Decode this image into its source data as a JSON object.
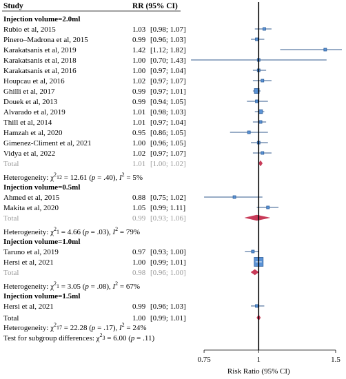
{
  "chart_data": {
    "type": "forest",
    "header": {
      "study": "Study",
      "effect": "RR (95% CI)"
    },
    "axis": {
      "label": "Risk Ratio (95% CI)",
      "ticks": [
        0.75,
        1,
        1.5
      ],
      "tick_labels": [
        "0.75",
        "1",
        "1.5"
      ],
      "scale": "log",
      "range": [
        0.67,
        1.55
      ],
      "reference": 1
    },
    "colors": {
      "box": "#5b93d6",
      "box_edge": "#2d5e9a",
      "line": "#5a7ba3",
      "diamond": "#c83a58",
      "total_text": "#9a9a9a"
    },
    "groups": [
      {
        "title": "Injection volume=2.0ml",
        "studies": [
          {
            "study": "Rubio et al, 2015",
            "ci_text": "1.03  [0.98;  1.07]",
            "rr": 1.03,
            "lo": 0.98,
            "hi": 1.07
          },
          {
            "study": "Pinero–Madrona et al, 2015",
            "ci_text": "0.99  [0.96;  1.03]",
            "rr": 0.99,
            "lo": 0.96,
            "hi": 1.03
          },
          {
            "study": "Karakatsanis et al, 2019",
            "ci_text": "1.42  [1.12;  1.82]",
            "rr": 1.42,
            "lo": 1.12,
            "hi": 1.82
          },
          {
            "study": "Karakatsanis et al, 2018",
            "ci_text": "1.00  [0.70;  1.43]",
            "rr": 1.0,
            "lo": 0.7,
            "hi": 1.43
          },
          {
            "study": "Karakatsanis et al, 2016",
            "ci_text": "1.00  [0.97;  1.04]",
            "rr": 1.0,
            "lo": 0.97,
            "hi": 1.04
          },
          {
            "study": "Houpcau et al, 2016",
            "ci_text": "1.02  [0.97;  1.07]",
            "rr": 1.02,
            "lo": 0.97,
            "hi": 1.07
          },
          {
            "study": "Ghilli et al, 2017",
            "ci_text": "0.99  [0.97;  1.01]",
            "rr": 0.99,
            "lo": 0.97,
            "hi": 1.01
          },
          {
            "study": "Douek et al, 2013",
            "ci_text": "0.99  [0.94;  1.05]",
            "rr": 0.99,
            "lo": 0.94,
            "hi": 1.05
          },
          {
            "study": "Alvarado et al, 2019",
            "ci_text": "1.01  [0.98;  1.03]",
            "rr": 1.01,
            "lo": 0.98,
            "hi": 1.03
          },
          {
            "study": "Thill et al, 2014",
            "ci_text": "1.01  [0.97;  1.04]",
            "rr": 1.01,
            "lo": 0.97,
            "hi": 1.04
          },
          {
            "study": "Hamzah et al, 2020",
            "ci_text": "0.95  [0.86;  1.05]",
            "rr": 0.95,
            "lo": 0.86,
            "hi": 1.05
          },
          {
            "study": "Gimenez-Climent et al, 2021",
            "ci_text": "1.00  [0.96;  1.05]",
            "rr": 1.0,
            "lo": 0.96,
            "hi": 1.05
          },
          {
            "study": "Vidya et al, 2022",
            "ci_text": "1.02  [0.97;  1.07]",
            "rr": 1.02,
            "lo": 0.97,
            "hi": 1.07
          }
        ],
        "total": {
          "label": "Total",
          "ci_text": "1.01  [1.00;  1.02]",
          "rr": 1.01,
          "lo": 1.0,
          "hi": 1.02
        },
        "heterogeneity": {
          "chi2": "12.61",
          "df": "12",
          "p": ".40",
          "i2": "5%"
        }
      },
      {
        "title": "Injection volume=0.5ml",
        "studies": [
          {
            "study": "Ahmed et al, 2015",
            "ci_text": "0.88  [0.75;  1.02]",
            "rr": 0.88,
            "lo": 0.75,
            "hi": 1.02
          },
          {
            "study": "Makita et al, 2020",
            "ci_text": "1.05  [0.99;  1.11]",
            "rr": 1.05,
            "lo": 0.99,
            "hi": 1.11
          }
        ],
        "total": {
          "label": "Total",
          "ci_text": "0.99  [0.93;  1.06]",
          "rr": 0.99,
          "lo": 0.93,
          "hi": 1.06
        },
        "heterogeneity": {
          "chi2": "4.66",
          "df": "1",
          "p": ".03",
          "i2": "79%"
        }
      },
      {
        "title": "Injection volume=1.0ml",
        "studies": [
          {
            "study": "Taruno et al, 2019",
            "ci_text": "0.97  [0.93;  1.00]",
            "rr": 0.97,
            "lo": 0.93,
            "hi": 1.0
          },
          {
            "study": "Hersi et al, 2021",
            "ci_text": "1.00  [0.99;  1.01]",
            "rr": 1.0,
            "lo": 0.99,
            "hi": 1.01
          }
        ],
        "total": {
          "label": "Total",
          "ci_text": "0.98  [0.96;  1.00]",
          "rr": 0.98,
          "lo": 0.96,
          "hi": 1.0
        },
        "heterogeneity": {
          "chi2": "3.05",
          "df": "1",
          "p": ".08",
          "i2": "67%"
        }
      },
      {
        "title": "Injection volume=1.5ml",
        "studies": [
          {
            "study": "Hersi et al, 2021",
            "ci_text": "0.99  [0.96;  1.03]",
            "rr": 0.99,
            "lo": 0.96,
            "hi": 1.03
          }
        ]
      }
    ],
    "overall": {
      "label": "Total",
      "ci_text": "1.00  [0.99;  1.01]",
      "rr": 1.0,
      "lo": 0.99,
      "hi": 1.01
    },
    "overall_heterogeneity": {
      "label": "Heterogeneity:",
      "chi2": "22.28",
      "df": "17",
      "p": ".17",
      "i2": "24%"
    },
    "subgroup_test": {
      "label": "Test for subgroup differences:",
      "chi2": "6.00",
      "df": "3",
      "p": ".11"
    }
  }
}
